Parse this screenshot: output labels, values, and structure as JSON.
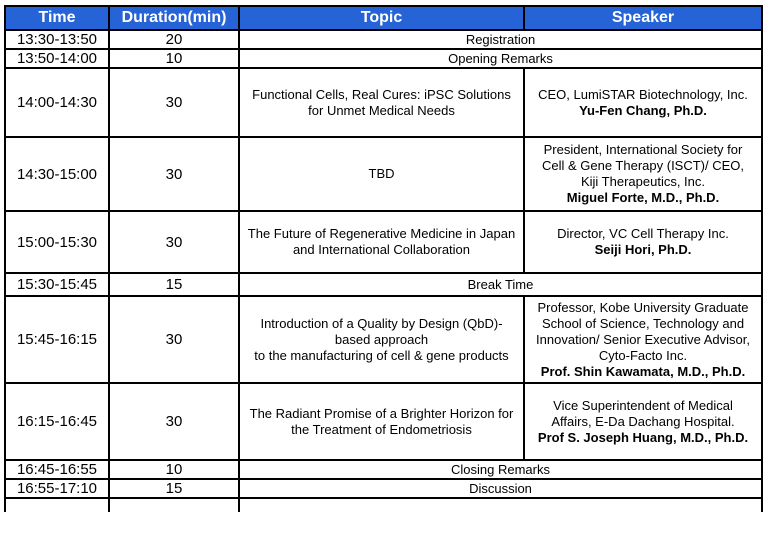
{
  "colors": {
    "header_bg": "#2563D6",
    "header_text": "#ffffff",
    "border": "#000000",
    "body_text": "#000000"
  },
  "table": {
    "headers": [
      "Time",
      "Duration(min)",
      "Topic",
      "Speaker"
    ],
    "rows": [
      {
        "time": "13:30-13:50",
        "duration": "20",
        "merged": "Registration"
      },
      {
        "time": "13:50-14:00",
        "duration": "10",
        "merged": "Opening Remarks"
      },
      {
        "time": "14:00-14:30",
        "duration": "30",
        "topic_lines": [
          "Functional Cells, Real Cures: iPSC Solutions",
          "for Unmet Medical Needs"
        ],
        "speaker_lines": [
          "CEO, LumiSTAR Biotechnology, Inc."
        ],
        "speaker_name": "Yu-Fen Chang, Ph.D."
      },
      {
        "time": "14:30-15:00",
        "duration": "30",
        "topic_lines": [
          "TBD"
        ],
        "speaker_lines": [
          "President, International Society for",
          "Cell & Gene Therapy (ISCT)/ CEO,",
          "Kiji Therapeutics, Inc."
        ],
        "speaker_name": "Miguel Forte, M.D., Ph.D."
      },
      {
        "time": "15:00-15:30",
        "duration": "30",
        "topic_lines": [
          "The Future of Regenerative Medicine in Japan",
          "and International Collaboration"
        ],
        "speaker_lines": [
          "Director, VC Cell Therapy Inc."
        ],
        "speaker_name": "Seiji Hori, Ph.D."
      },
      {
        "time": "15:30-15:45",
        "duration": "15",
        "merged": "Break Time"
      },
      {
        "time": "15:45-16:15",
        "duration": "30",
        "topic_lines": [
          "Introduction of a Quality by Design (QbD)-",
          "based approach",
          "to the manufacturing of cell & gene products"
        ],
        "speaker_lines": [
          "Professor, Kobe University Graduate",
          "School of Science, Technology and",
          "Innovation/ Senior Executive Advisor,",
          "Cyto-Facto Inc."
        ],
        "speaker_name": "Prof. Shin Kawamata, M.D., Ph.D."
      },
      {
        "time": "16:15-16:45",
        "duration": "30",
        "topic_lines": [
          "The Radiant Promise of a Brighter Horizon for",
          "the Treatment of Endometriosis"
        ],
        "speaker_lines": [
          "Vice Superintendent of Medical",
          "Affairs, E-Da Dachang Hospital."
        ],
        "speaker_name": "Prof S. Joseph Huang, M.D., Ph.D."
      },
      {
        "time": "16:45-16:55",
        "duration": "10",
        "merged": "Closing Remarks"
      },
      {
        "time": "16:55-17:10",
        "duration": "15",
        "merged": "Discussion"
      }
    ]
  }
}
